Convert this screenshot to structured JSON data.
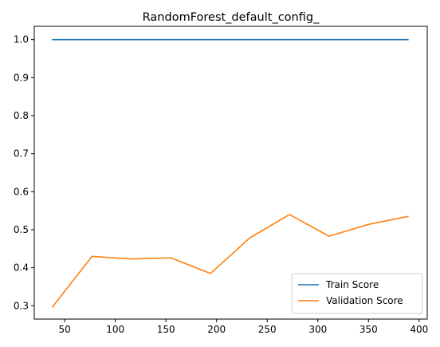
{
  "chart_data": {
    "type": "line",
    "title": "RandomForest_default_config_",
    "xlabel": "",
    "ylabel": "",
    "xlim": [
      20,
      408
    ],
    "ylim": [
      0.265,
      1.035
    ],
    "xticks": [
      50,
      100,
      150,
      200,
      250,
      300,
      350,
      400
    ],
    "yticks": [
      0.3,
      0.4,
      0.5,
      0.6,
      0.7,
      0.8,
      0.9,
      1.0
    ],
    "xtick_labels": [
      "50",
      "100",
      "150",
      "200",
      "250",
      "300",
      "350",
      "400"
    ],
    "ytick_labels": [
      "0.3",
      "0.4",
      "0.5",
      "0.6",
      "0.7",
      "0.8",
      "0.9",
      "1.0"
    ],
    "grid": false,
    "legend_position": "lower-right",
    "x": [
      38,
      77,
      116,
      155,
      194,
      233,
      272,
      311,
      350,
      389
    ],
    "series": [
      {
        "name": "Train Score",
        "color": "#1f77b4",
        "values": [
          1.0,
          1.0,
          1.0,
          1.0,
          1.0,
          1.0,
          1.0,
          1.0,
          1.0,
          1.0
        ]
      },
      {
        "name": "Validation Score",
        "color": "#ff7f0e",
        "values": [
          0.297,
          0.43,
          0.423,
          0.426,
          0.385,
          0.479,
          0.54,
          0.483,
          0.514,
          0.535
        ]
      }
    ]
  }
}
